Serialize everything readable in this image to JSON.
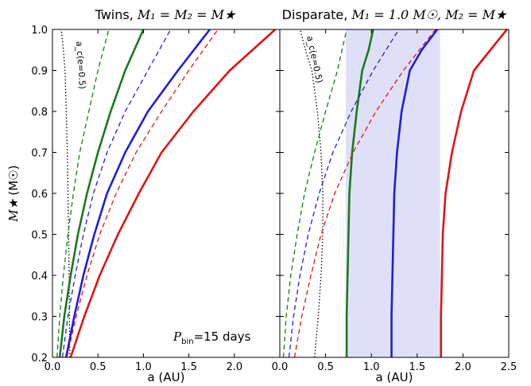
{
  "figure": {
    "annotation": "=15 days",
    "annotation_symbol": "P",
    "annotation_subscript": "bin"
  },
  "colors": {
    "green": "#1a7a1a",
    "blue": "#1f1fd6",
    "red": "#e01414",
    "shade": "#dfe0f8"
  },
  "chart_data": [
    {
      "type": "line",
      "title": "Twins, ",
      "title_math": "M₁ = M₂ = M★",
      "xlabel": "a (AU)",
      "ylabel_symbol": "M★",
      "ylabel_unit": "(M☉)",
      "xlim": [
        0.0,
        2.5
      ],
      "ylim": [
        0.2,
        1.0
      ],
      "xticks": [
        "0.0",
        "0.5",
        "1.0",
        "1.5",
        "2.0"
      ],
      "yticks": [
        "0.2",
        "0.3",
        "0.4",
        "0.5",
        "0.6",
        "0.7",
        "0.8",
        "0.9",
        "1.0"
      ],
      "critical_label": "a_c(e=0.5)",
      "critical_curve": {
        "style": "dotted",
        "color": "#000000",
        "x": [
          0.19,
          0.187,
          0.183,
          0.178,
          0.171,
          0.163,
          0.152,
          0.138,
          0.12,
          0.097
        ],
        "y": [
          0.2,
          0.3,
          0.4,
          0.5,
          0.6,
          0.7,
          0.8,
          0.9,
          0.95,
          1.0
        ]
      },
      "series": [
        {
          "color": "green",
          "style": "solid",
          "x": [
            0.08,
            0.13,
            0.2,
            0.28,
            0.38,
            0.5,
            0.64,
            0.8,
            1.0
          ],
          "y": [
            0.2,
            0.3,
            0.4,
            0.5,
            0.6,
            0.7,
            0.8,
            0.9,
            1.0
          ]
        },
        {
          "color": "green",
          "style": "dashed",
          "x": [
            0.05,
            0.08,
            0.12,
            0.17,
            0.23,
            0.3,
            0.4,
            0.5,
            0.62
          ],
          "y": [
            0.2,
            0.3,
            0.4,
            0.5,
            0.6,
            0.7,
            0.8,
            0.9,
            1.0
          ]
        },
        {
          "color": "blue",
          "style": "solid",
          "x": [
            0.15,
            0.24,
            0.34,
            0.46,
            0.6,
            0.8,
            1.05,
            1.38,
            1.73
          ],
          "y": [
            0.2,
            0.3,
            0.4,
            0.5,
            0.6,
            0.7,
            0.8,
            0.9,
            1.0
          ]
        },
        {
          "color": "blue",
          "style": "dashed",
          "x": [
            0.11,
            0.17,
            0.25,
            0.34,
            0.45,
            0.6,
            0.8,
            1.05,
            1.3
          ],
          "y": [
            0.2,
            0.3,
            0.4,
            0.5,
            0.6,
            0.7,
            0.8,
            0.9,
            1.0
          ]
        },
        {
          "color": "red",
          "style": "solid",
          "x": [
            0.2,
            0.35,
            0.52,
            0.72,
            0.95,
            1.2,
            1.55,
            1.95,
            2.45
          ],
          "y": [
            0.2,
            0.3,
            0.4,
            0.5,
            0.6,
            0.7,
            0.8,
            0.9,
            1.0
          ]
        },
        {
          "color": "red",
          "style": "dashed",
          "x": [
            0.16,
            0.26,
            0.38,
            0.52,
            0.7,
            0.92,
            1.2,
            1.5,
            1.82
          ],
          "y": [
            0.2,
            0.3,
            0.4,
            0.5,
            0.6,
            0.7,
            0.8,
            0.9,
            1.0
          ]
        }
      ]
    },
    {
      "type": "line",
      "title": "Disparate, ",
      "title_math": "M₁ = 1.0 M☉, M₂ = M★",
      "xlabel": "a (AU)",
      "xlim": [
        0.0,
        2.5
      ],
      "ylim": [
        0.2,
        1.0
      ],
      "xticks": [
        "0.0",
        "0.5",
        "1.0",
        "1.5",
        "2.0",
        "2.5"
      ],
      "shaded_region_x": [
        0.72,
        1.75
      ],
      "critical_label": "a_c(e=0.5)",
      "critical_curve": {
        "style": "dotted",
        "color": "#000000",
        "x": [
          0.38,
          0.42,
          0.45,
          0.47,
          0.47,
          0.45,
          0.41,
          0.35,
          0.28,
          0.22
        ],
        "y": [
          0.2,
          0.3,
          0.4,
          0.5,
          0.6,
          0.7,
          0.8,
          0.9,
          0.95,
          1.0
        ]
      },
      "series": [
        {
          "color": "green",
          "style": "solid",
          "x": [
            0.73,
            0.73,
            0.74,
            0.75,
            0.76,
            0.79,
            0.84,
            0.9,
            0.97,
            1.02
          ],
          "y": [
            0.2,
            0.3,
            0.4,
            0.5,
            0.6,
            0.7,
            0.8,
            0.9,
            0.95,
            1.0
          ]
        },
        {
          "color": "green",
          "style": "dashed",
          "x": [
            0.04,
            0.07,
            0.12,
            0.19,
            0.27,
            0.38,
            0.5,
            0.63,
            0.73
          ],
          "y": [
            0.2,
            0.3,
            0.4,
            0.5,
            0.6,
            0.7,
            0.8,
            0.9,
            1.0
          ]
        },
        {
          "color": "blue",
          "style": "solid",
          "x": [
            1.22,
            1.22,
            1.23,
            1.24,
            1.25,
            1.28,
            1.33,
            1.42,
            1.55,
            1.72
          ],
          "y": [
            0.2,
            0.3,
            0.4,
            0.5,
            0.6,
            0.7,
            0.8,
            0.9,
            0.95,
            1.0
          ]
        },
        {
          "color": "blue",
          "style": "dashed",
          "x": [
            0.1,
            0.15,
            0.22,
            0.31,
            0.43,
            0.58,
            0.78,
            1.02,
            1.3
          ],
          "y": [
            0.2,
            0.3,
            0.4,
            0.5,
            0.6,
            0.7,
            0.8,
            0.9,
            1.0
          ]
        },
        {
          "color": "red",
          "style": "solid",
          "x": [
            1.76,
            1.76,
            1.77,
            1.78,
            1.81,
            1.88,
            1.98,
            2.12,
            2.3,
            2.48
          ],
          "y": [
            0.2,
            0.3,
            0.4,
            0.5,
            0.6,
            0.7,
            0.8,
            0.9,
            0.95,
            1.0
          ]
        },
        {
          "color": "red",
          "style": "dashed",
          "x": [
            0.16,
            0.24,
            0.34,
            0.45,
            0.6,
            0.8,
            1.05,
            1.35,
            1.7
          ],
          "y": [
            0.2,
            0.3,
            0.4,
            0.5,
            0.6,
            0.7,
            0.8,
            0.9,
            1.0
          ]
        }
      ]
    }
  ]
}
